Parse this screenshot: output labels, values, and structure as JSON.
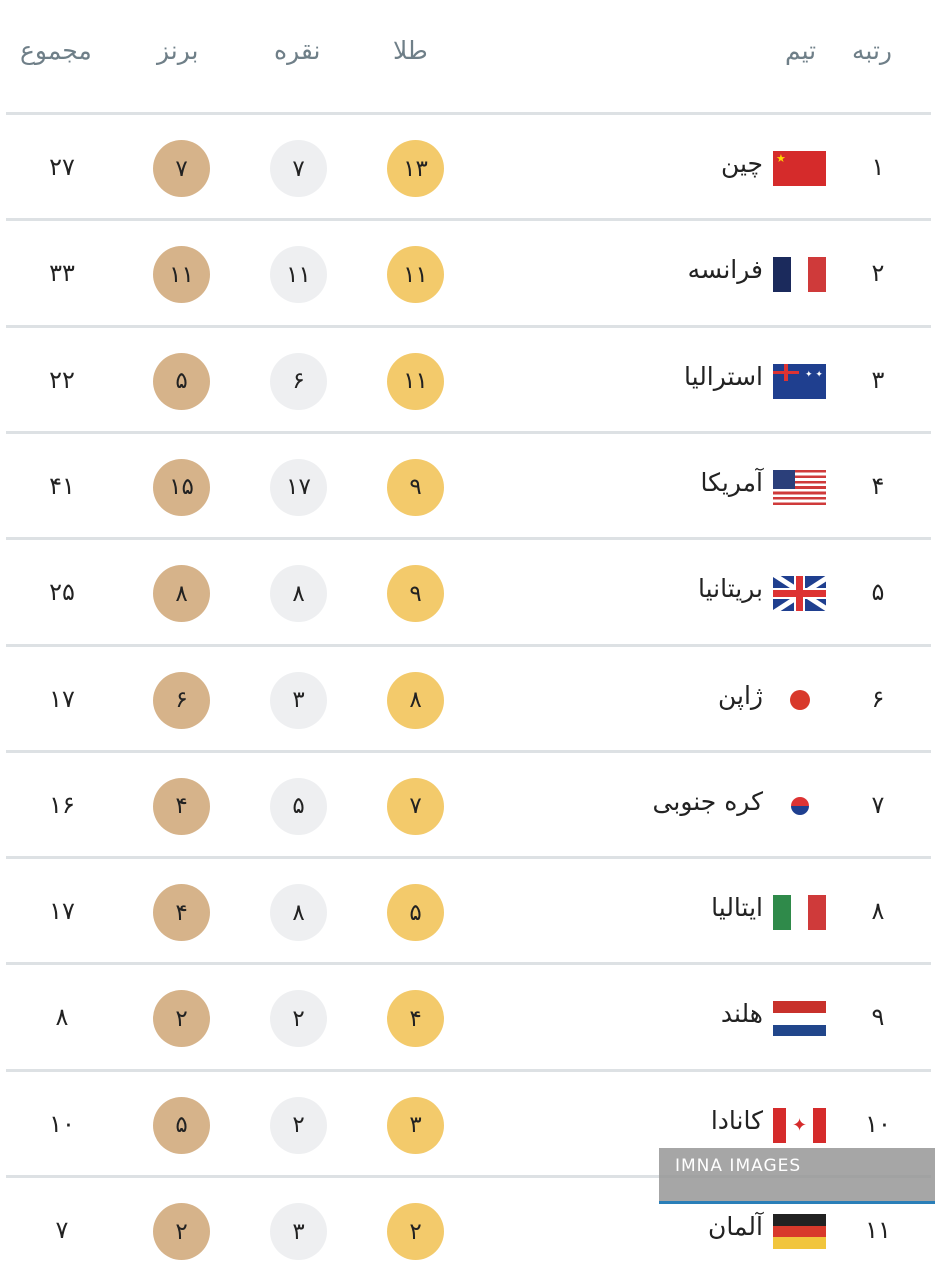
{
  "header": {
    "rank": "رتبه",
    "team": "تیم",
    "gold": "طلا",
    "silver": "نقره",
    "bronze": "برنز",
    "total": "مجموع"
  },
  "rows": [
    {
      "rank": "۱",
      "team": "چین",
      "flag": "china-flag",
      "gold": "۱۳",
      "silver": "۷",
      "bronze": "۷",
      "total": "۲۷"
    },
    {
      "rank": "۲",
      "team": "فرانسه",
      "flag": "france-flag",
      "gold": "۱۱",
      "silver": "۱۱",
      "bronze": "۱۱",
      "total": "۳۳"
    },
    {
      "rank": "۳",
      "team": "استرالیا",
      "flag": "australia-flag",
      "gold": "۱۱",
      "silver": "۶",
      "bronze": "۵",
      "total": "۲۲"
    },
    {
      "rank": "۴",
      "team": "آمریکا",
      "flag": "usa-flag",
      "gold": "۹",
      "silver": "۱۷",
      "bronze": "۱۵",
      "total": "۴۱"
    },
    {
      "rank": "۵",
      "team": "بریتانیا",
      "flag": "uk-flag",
      "gold": "۹",
      "silver": "۸",
      "bronze": "۸",
      "total": "۲۵"
    },
    {
      "rank": "۶",
      "team": "ژاپن",
      "flag": "japan-flag",
      "gold": "۸",
      "silver": "۳",
      "bronze": "۶",
      "total": "۱۷"
    },
    {
      "rank": "۷",
      "team": "کره جنوبی",
      "flag": "south-korea-flag",
      "gold": "۷",
      "silver": "۵",
      "bronze": "۴",
      "total": "۱۶"
    },
    {
      "rank": "۸",
      "team": "ایتالیا",
      "flag": "italy-flag",
      "gold": "۵",
      "silver": "۸",
      "bronze": "۴",
      "total": "۱۷"
    },
    {
      "rank": "۹",
      "team": "هلند",
      "flag": "netherlands-flag",
      "gold": "۴",
      "silver": "۲",
      "bronze": "۲",
      "total": "۸"
    },
    {
      "rank": "۱۰",
      "team": "کانادا",
      "flag": "canada-flag",
      "gold": "۳",
      "silver": "۲",
      "bronze": "۵",
      "total": "۱۰"
    },
    {
      "rank": "۱۱",
      "team": "آلمان",
      "flag": "germany-flag",
      "gold": "۲",
      "silver": "۳",
      "bronze": "۲",
      "total": "۷"
    }
  ],
  "colors": {
    "gold": "#f3ca6b",
    "silver": "#eeeff1",
    "bronze": "#d6b38a",
    "header_text": "#6f7f88"
  },
  "watermark": "IMNA IMAGES"
}
